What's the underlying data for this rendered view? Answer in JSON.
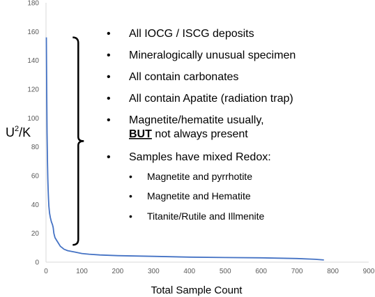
{
  "chart_data": {
    "type": "line",
    "xlabel": "Total Sample Count",
    "ylabel_main": "U",
    "ylabel_sup": "2",
    "ylabel_tail": "/K",
    "xlim": [
      0,
      900
    ],
    "ylim": [
      0,
      180
    ],
    "x_ticks": [
      "0",
      "100",
      "200",
      "300",
      "400",
      "500",
      "600",
      "700",
      "800",
      "900"
    ],
    "y_ticks": [
      "0",
      "20",
      "40",
      "60",
      "80",
      "100",
      "120",
      "140",
      "160",
      "180"
    ],
    "grid": false,
    "series": [
      {
        "color": "#4472c4",
        "points": [
          [
            1,
            156
          ],
          [
            2,
            120
          ],
          [
            3,
            90
          ],
          [
            4,
            70
          ],
          [
            5,
            58
          ],
          [
            6,
            50
          ],
          [
            7,
            44
          ],
          [
            8,
            39
          ],
          [
            10,
            34
          ],
          [
            12,
            31
          ],
          [
            15,
            28
          ],
          [
            18,
            26
          ],
          [
            20,
            24
          ],
          [
            22,
            20
          ],
          [
            25,
            17
          ],
          [
            30,
            15
          ],
          [
            35,
            13
          ],
          [
            40,
            11
          ],
          [
            45,
            10
          ],
          [
            50,
            9
          ],
          [
            60,
            8
          ],
          [
            70,
            7.5
          ],
          [
            80,
            7
          ],
          [
            100,
            6
          ],
          [
            120,
            5.5
          ],
          [
            150,
            5
          ],
          [
            200,
            4.5
          ],
          [
            300,
            4
          ],
          [
            400,
            3.5
          ],
          [
            500,
            3.2
          ],
          [
            600,
            3
          ],
          [
            700,
            2.5
          ],
          [
            750,
            2
          ],
          [
            775,
            1.5
          ]
        ]
      }
    ],
    "brace": {
      "x": 90,
      "y_top": 156,
      "y_bottom": 12,
      "y_mid": 84
    }
  },
  "bullets": [
    {
      "text": "All IOCG / ISCG deposits"
    },
    {
      "text": "Mineralogically unusual specimen"
    },
    {
      "text": "All contain carbonates"
    },
    {
      "text": "All contain Apatite (radiation trap)"
    },
    {
      "line1": "Magnetite/hematite  usually,",
      "line2_bold": "BUT",
      "line2_rest": " not always present"
    },
    {
      "text": "Samples have mixed Redox:"
    }
  ],
  "sub_bullets": [
    {
      "text": "Magnetite and pyrrhotite"
    },
    {
      "text": "Magnetite and Hematite"
    },
    {
      "text": "Titanite/Rutile and Illmenite"
    }
  ],
  "bullet_glyph": "•"
}
